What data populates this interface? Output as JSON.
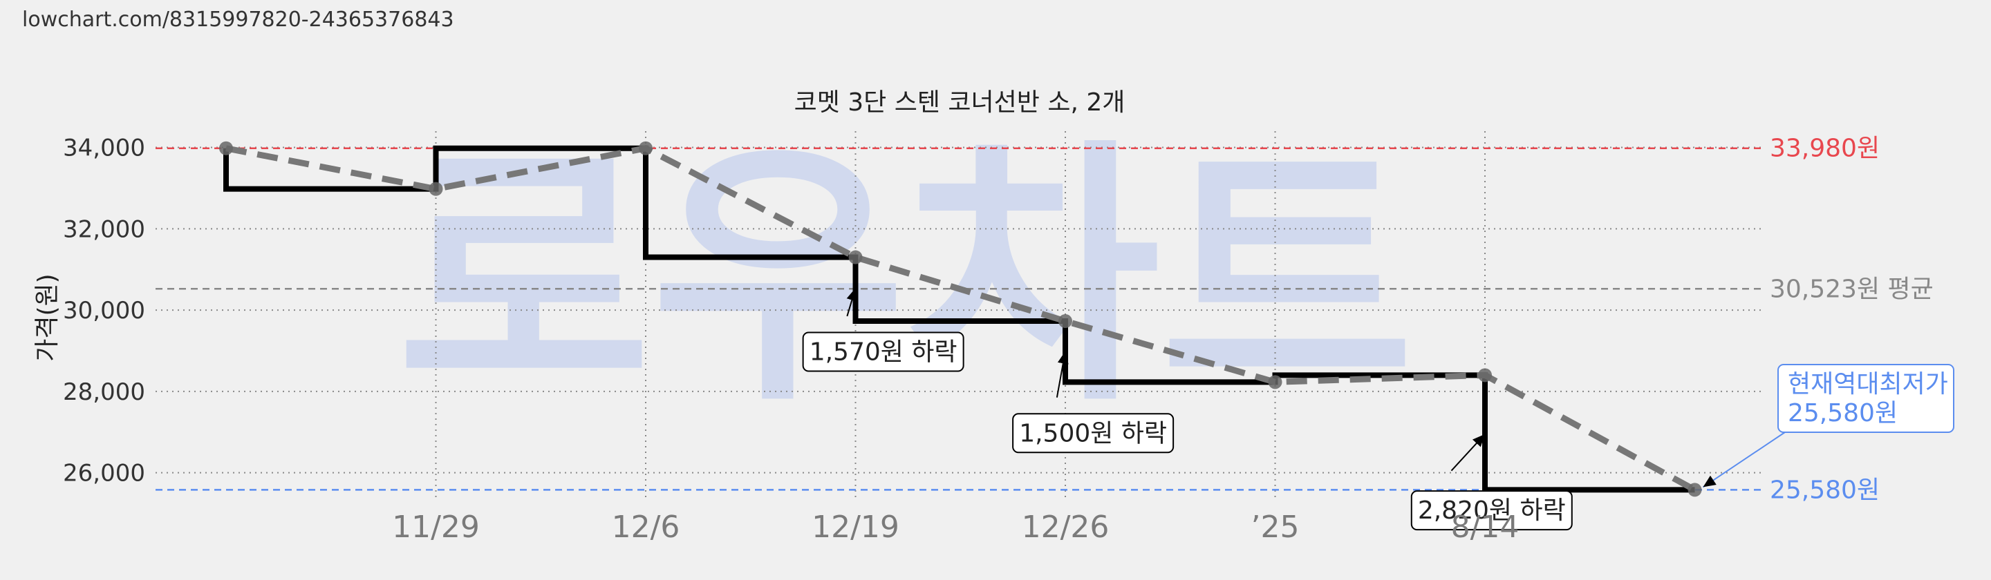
{
  "url": "lowchart.com/8315997820-24365376843",
  "watermark": "로우차트",
  "chart_data": {
    "type": "line",
    "title": "코멧 3단 스텐 코너선반 소, 2개",
    "ylabel": "가격(원)",
    "ylim": [
      25400,
      34400
    ],
    "yticks": [
      26000,
      28000,
      30000,
      32000,
      34000
    ],
    "ytick_labels": [
      "26,000",
      "28,000",
      "30,000",
      "32,000",
      "34,000"
    ],
    "x_domain": [
      -1,
      7
    ],
    "xticks": [
      1,
      2,
      3,
      4,
      5,
      6
    ],
    "xtick_labels": [
      "11/29",
      "12/6",
      "12/19",
      "12/26",
      "’25",
      "8/14"
    ],
    "grid": true,
    "series": [
      {
        "style": "step",
        "color": "#000000",
        "x": [
          0,
          1,
          2,
          3,
          4,
          5,
          6,
          7
        ],
        "y": [
          33980,
          32980,
          33980,
          31300,
          29730,
          28230,
          28400,
          25580
        ]
      },
      {
        "style": "dashed-trend",
        "color": "#777777",
        "x": [
          0,
          1,
          2,
          3,
          4,
          5,
          6,
          7
        ],
        "y": [
          33980,
          32980,
          33980,
          31300,
          29730,
          28230,
          28400,
          25580
        ]
      }
    ],
    "reference_lines": [
      {
        "name": "max",
        "value": 33980,
        "label": "33,980원",
        "color": "#e8474e"
      },
      {
        "name": "avg",
        "value": 30523,
        "label": "30,523원 평균",
        "color": "#888888"
      },
      {
        "name": "min",
        "value": 25580,
        "label": "25,580원",
        "color": "#5b8def"
      }
    ],
    "annotations": [
      {
        "text": "1,570원 하락",
        "box_x": 2.75,
        "box_y": 29450,
        "arrow_from": [
          2.96,
          29850
        ],
        "arrow_to": [
          3.0,
          30540
        ]
      },
      {
        "text": "1,500원 하락",
        "box_x": 3.75,
        "box_y": 27450,
        "arrow_from": [
          3.96,
          27850
        ],
        "arrow_to": [
          4.0,
          28990
        ]
      },
      {
        "text": "2,820원 하락",
        "box_x": 5.65,
        "box_y": 25550,
        "arrow_from": [
          5.84,
          26050
        ],
        "arrow_to": [
          6.0,
          26950
        ]
      }
    ],
    "current_low_label": {
      "lines": [
        "현재역대최저가",
        "25,580원"
      ],
      "color": "#5b8def"
    }
  }
}
